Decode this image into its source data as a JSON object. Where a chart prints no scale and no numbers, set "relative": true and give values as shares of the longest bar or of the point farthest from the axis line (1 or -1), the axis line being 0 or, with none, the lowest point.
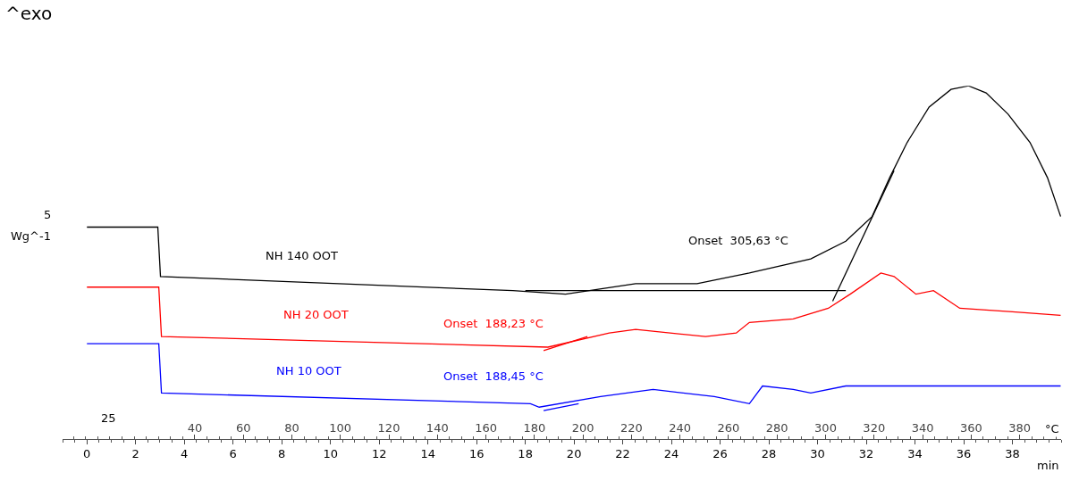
{
  "chart_data": {
    "type": "line",
    "title": "^exo",
    "ylabel": "Wg^-1",
    "xlabel": "min",
    "x2label": "°C",
    "relative": true,
    "legend": false,
    "marker": "none",
    "line_style": "solid",
    "xlim": [
      -1,
      40
    ],
    "xticks": [
      0,
      2,
      4,
      6,
      8,
      10,
      12,
      14,
      16,
      18,
      20,
      22,
      24,
      26,
      28,
      30,
      32,
      34,
      36,
      38
    ],
    "x2lim": [
      -14.5,
      397.1
    ],
    "x2ticks": [
      40,
      60,
      80,
      100,
      120,
      140,
      160,
      180,
      200,
      220,
      240,
      260,
      280,
      300,
      320,
      340,
      360,
      380
    ],
    "annotations": [
      "Onset  305,63 °C",
      "Onset  188,23 °C",
      "Onset  188,45 °C",
      "5",
      "25"
    ],
    "series": [
      {
        "name": "NH 140 OOT",
        "color": "#000000",
        "x": [
          0,
          2.91,
          3.02,
          17.49,
          19.65,
          22.53,
          25.05,
          27.2,
          29.72,
          31.16,
          32.24,
          32.96,
          33.68,
          34.58,
          35.48,
          36.2,
          36.92,
          37.82,
          38.72,
          39.44,
          39.98
        ],
        "values": [
          0.6,
          0.6,
          0.46,
          0.42,
          0.41,
          0.44,
          0.44,
          0.47,
          0.51,
          0.56,
          0.63,
          0.74,
          0.84,
          0.94,
          0.99,
          1.0,
          0.98,
          0.92,
          0.84,
          0.74,
          0.63
        ]
      },
      {
        "name": "NH 20 OOT",
        "color": "#ff0000",
        "x": [
          0,
          2.95,
          3.06,
          18.93,
          21.45,
          22.53,
          25.4,
          26.66,
          27.2,
          29.0,
          30.44,
          31.34,
          32.6,
          33.14,
          34.04,
          34.76,
          35.84,
          38.0,
          39.98
        ],
        "values": [
          0.43,
          0.43,
          0.29,
          0.26,
          0.3,
          0.31,
          0.29,
          0.3,
          0.33,
          0.34,
          0.37,
          0.41,
          0.47,
          0.46,
          0.41,
          0.42,
          0.37,
          0.36,
          0.35
        ]
      },
      {
        "name": "NH 10 OOT",
        "color": "#0000ff",
        "x": [
          0,
          2.95,
          3.06,
          18.21,
          18.57,
          21.09,
          23.25,
          25.76,
          27.2,
          27.74,
          29.0,
          29.72,
          31.16,
          32.6,
          34.4,
          36.56,
          39.98
        ],
        "values": [
          0.27,
          0.27,
          0.13,
          0.1,
          0.09,
          0.12,
          0.14,
          0.12,
          0.1,
          0.15,
          0.14,
          0.13,
          0.15,
          0.15,
          0.15,
          0.15,
          0.15
        ]
      },
      {
        "color": "#000000",
        "x": [
          18.0,
          31.16
        ],
        "values": [
          0.42,
          0.42
        ]
      },
      {
        "color": "#000000",
        "x": [
          30.62,
          33.14
        ],
        "values": [
          0.39,
          0.76
        ]
      },
      {
        "color": "#ff0000",
        "x": [
          18.75,
          20.55
        ],
        "values": [
          0.25,
          0.29
        ]
      },
      {
        "color": "#0000ff",
        "x": [
          18.75,
          20.19
        ],
        "values": [
          0.08,
          0.1
        ]
      }
    ]
  }
}
